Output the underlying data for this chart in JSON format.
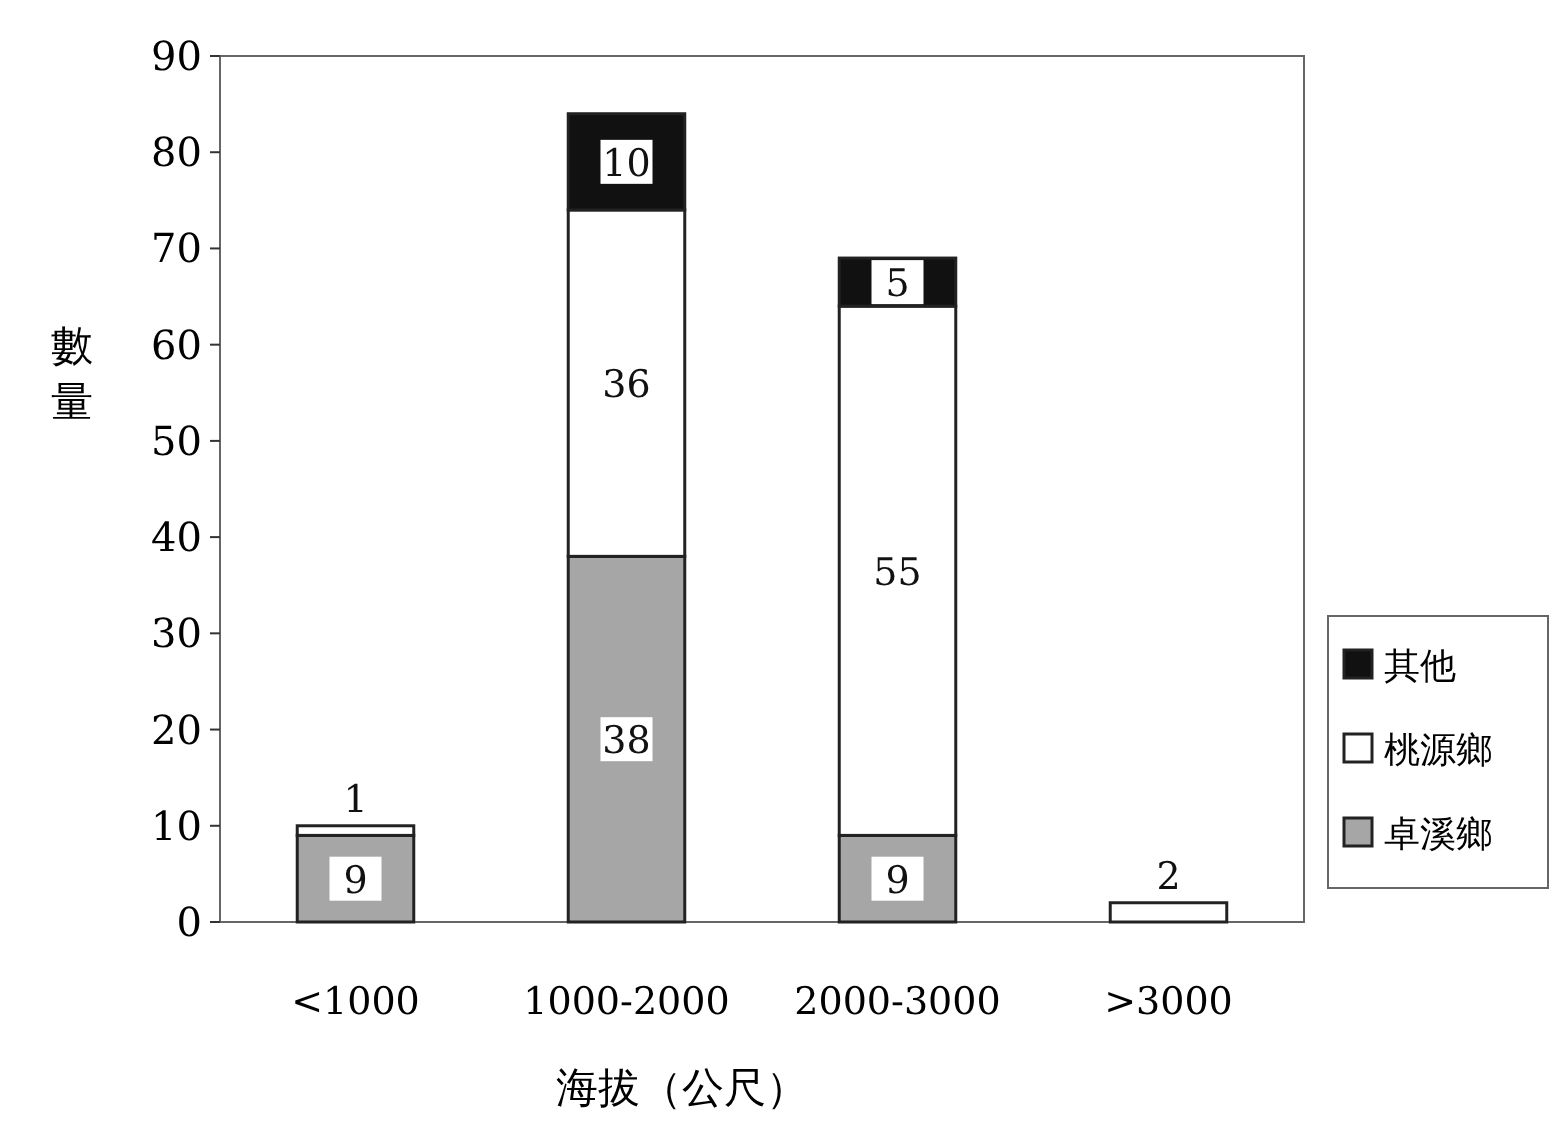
{
  "chart_data": {
    "type": "bar",
    "stacked": true,
    "xlabel": "海拔（公尺）",
    "ylabel": "數量",
    "categories": [
      "<1000",
      "1000-2000",
      "2000-3000",
      ">3000"
    ],
    "series": [
      {
        "name": "卓溪鄉",
        "color": "#a6a6a6",
        "values": [
          9,
          38,
          9,
          0
        ],
        "value_labels": [
          "9",
          "38",
          "9",
          null
        ]
      },
      {
        "name": "桃源鄉",
        "color": "#ffffff",
        "values": [
          1,
          36,
          55,
          2
        ],
        "value_labels": [
          "1",
          "36",
          "55",
          "2"
        ]
      },
      {
        "name": "其他",
        "color": "#111111",
        "values": [
          0,
          10,
          5,
          0
        ],
        "value_labels": [
          null,
          "10",
          "5",
          null
        ]
      }
    ],
    "ylim": [
      0,
      90
    ],
    "yticks": [
      0,
      10,
      20,
      30,
      40,
      50,
      60,
      70,
      80,
      90
    ],
    "legend": "right",
    "grid": false
  }
}
